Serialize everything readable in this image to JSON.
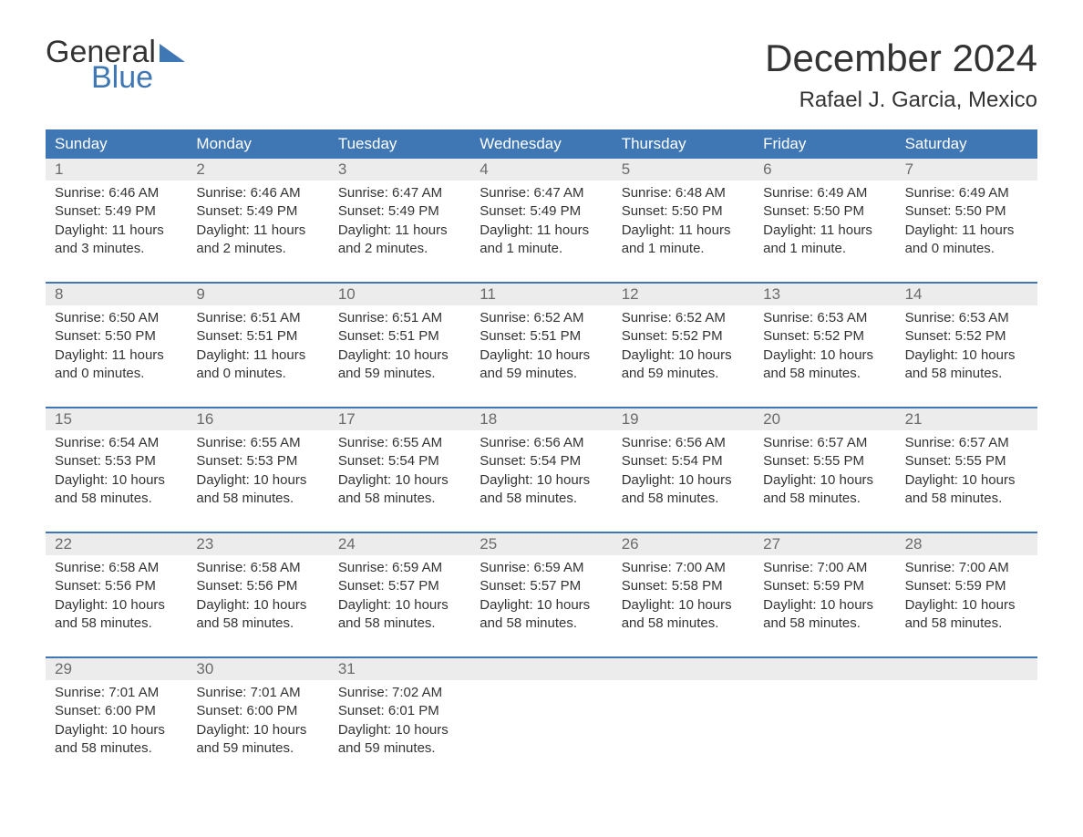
{
  "logo": {
    "line1": "General",
    "line2": "Blue"
  },
  "header": {
    "month_title": "December 2024",
    "location": "Rafael J. Garcia, Mexico"
  },
  "colors": {
    "header_bg": "#3f77b5",
    "header_text": "#ffffff",
    "daynum_bg": "#ececec",
    "daynum_text": "#6b6b6b",
    "body_text": "#333333",
    "rule": "#3f77b5"
  },
  "weekdays": [
    "Sunday",
    "Monday",
    "Tuesday",
    "Wednesday",
    "Thursday",
    "Friday",
    "Saturday"
  ],
  "weeks": [
    [
      {
        "n": "1",
        "sr": "Sunrise: 6:46 AM",
        "ss": "Sunset: 5:49 PM",
        "dl": "Daylight: 11 hours and 3 minutes."
      },
      {
        "n": "2",
        "sr": "Sunrise: 6:46 AM",
        "ss": "Sunset: 5:49 PM",
        "dl": "Daylight: 11 hours and 2 minutes."
      },
      {
        "n": "3",
        "sr": "Sunrise: 6:47 AM",
        "ss": "Sunset: 5:49 PM",
        "dl": "Daylight: 11 hours and 2 minutes."
      },
      {
        "n": "4",
        "sr": "Sunrise: 6:47 AM",
        "ss": "Sunset: 5:49 PM",
        "dl": "Daylight: 11 hours and 1 minute."
      },
      {
        "n": "5",
        "sr": "Sunrise: 6:48 AM",
        "ss": "Sunset: 5:50 PM",
        "dl": "Daylight: 11 hours and 1 minute."
      },
      {
        "n": "6",
        "sr": "Sunrise: 6:49 AM",
        "ss": "Sunset: 5:50 PM",
        "dl": "Daylight: 11 hours and 1 minute."
      },
      {
        "n": "7",
        "sr": "Sunrise: 6:49 AM",
        "ss": "Sunset: 5:50 PM",
        "dl": "Daylight: 11 hours and 0 minutes."
      }
    ],
    [
      {
        "n": "8",
        "sr": "Sunrise: 6:50 AM",
        "ss": "Sunset: 5:50 PM",
        "dl": "Daylight: 11 hours and 0 minutes."
      },
      {
        "n": "9",
        "sr": "Sunrise: 6:51 AM",
        "ss": "Sunset: 5:51 PM",
        "dl": "Daylight: 11 hours and 0 minutes."
      },
      {
        "n": "10",
        "sr": "Sunrise: 6:51 AM",
        "ss": "Sunset: 5:51 PM",
        "dl": "Daylight: 10 hours and 59 minutes."
      },
      {
        "n": "11",
        "sr": "Sunrise: 6:52 AM",
        "ss": "Sunset: 5:51 PM",
        "dl": "Daylight: 10 hours and 59 minutes."
      },
      {
        "n": "12",
        "sr": "Sunrise: 6:52 AM",
        "ss": "Sunset: 5:52 PM",
        "dl": "Daylight: 10 hours and 59 minutes."
      },
      {
        "n": "13",
        "sr": "Sunrise: 6:53 AM",
        "ss": "Sunset: 5:52 PM",
        "dl": "Daylight: 10 hours and 58 minutes."
      },
      {
        "n": "14",
        "sr": "Sunrise: 6:53 AM",
        "ss": "Sunset: 5:52 PM",
        "dl": "Daylight: 10 hours and 58 minutes."
      }
    ],
    [
      {
        "n": "15",
        "sr": "Sunrise: 6:54 AM",
        "ss": "Sunset: 5:53 PM",
        "dl": "Daylight: 10 hours and 58 minutes."
      },
      {
        "n": "16",
        "sr": "Sunrise: 6:55 AM",
        "ss": "Sunset: 5:53 PM",
        "dl": "Daylight: 10 hours and 58 minutes."
      },
      {
        "n": "17",
        "sr": "Sunrise: 6:55 AM",
        "ss": "Sunset: 5:54 PM",
        "dl": "Daylight: 10 hours and 58 minutes."
      },
      {
        "n": "18",
        "sr": "Sunrise: 6:56 AM",
        "ss": "Sunset: 5:54 PM",
        "dl": "Daylight: 10 hours and 58 minutes."
      },
      {
        "n": "19",
        "sr": "Sunrise: 6:56 AM",
        "ss": "Sunset: 5:54 PM",
        "dl": "Daylight: 10 hours and 58 minutes."
      },
      {
        "n": "20",
        "sr": "Sunrise: 6:57 AM",
        "ss": "Sunset: 5:55 PM",
        "dl": "Daylight: 10 hours and 58 minutes."
      },
      {
        "n": "21",
        "sr": "Sunrise: 6:57 AM",
        "ss": "Sunset: 5:55 PM",
        "dl": "Daylight: 10 hours and 58 minutes."
      }
    ],
    [
      {
        "n": "22",
        "sr": "Sunrise: 6:58 AM",
        "ss": "Sunset: 5:56 PM",
        "dl": "Daylight: 10 hours and 58 minutes."
      },
      {
        "n": "23",
        "sr": "Sunrise: 6:58 AM",
        "ss": "Sunset: 5:56 PM",
        "dl": "Daylight: 10 hours and 58 minutes."
      },
      {
        "n": "24",
        "sr": "Sunrise: 6:59 AM",
        "ss": "Sunset: 5:57 PM",
        "dl": "Daylight: 10 hours and 58 minutes."
      },
      {
        "n": "25",
        "sr": "Sunrise: 6:59 AM",
        "ss": "Sunset: 5:57 PM",
        "dl": "Daylight: 10 hours and 58 minutes."
      },
      {
        "n": "26",
        "sr": "Sunrise: 7:00 AM",
        "ss": "Sunset: 5:58 PM",
        "dl": "Daylight: 10 hours and 58 minutes."
      },
      {
        "n": "27",
        "sr": "Sunrise: 7:00 AM",
        "ss": "Sunset: 5:59 PM",
        "dl": "Daylight: 10 hours and 58 minutes."
      },
      {
        "n": "28",
        "sr": "Sunrise: 7:00 AM",
        "ss": "Sunset: 5:59 PM",
        "dl": "Daylight: 10 hours and 58 minutes."
      }
    ],
    [
      {
        "n": "29",
        "sr": "Sunrise: 7:01 AM",
        "ss": "Sunset: 6:00 PM",
        "dl": "Daylight: 10 hours and 58 minutes."
      },
      {
        "n": "30",
        "sr": "Sunrise: 7:01 AM",
        "ss": "Sunset: 6:00 PM",
        "dl": "Daylight: 10 hours and 59 minutes."
      },
      {
        "n": "31",
        "sr": "Sunrise: 7:02 AM",
        "ss": "Sunset: 6:01 PM",
        "dl": "Daylight: 10 hours and 59 minutes."
      },
      null,
      null,
      null,
      null
    ]
  ]
}
